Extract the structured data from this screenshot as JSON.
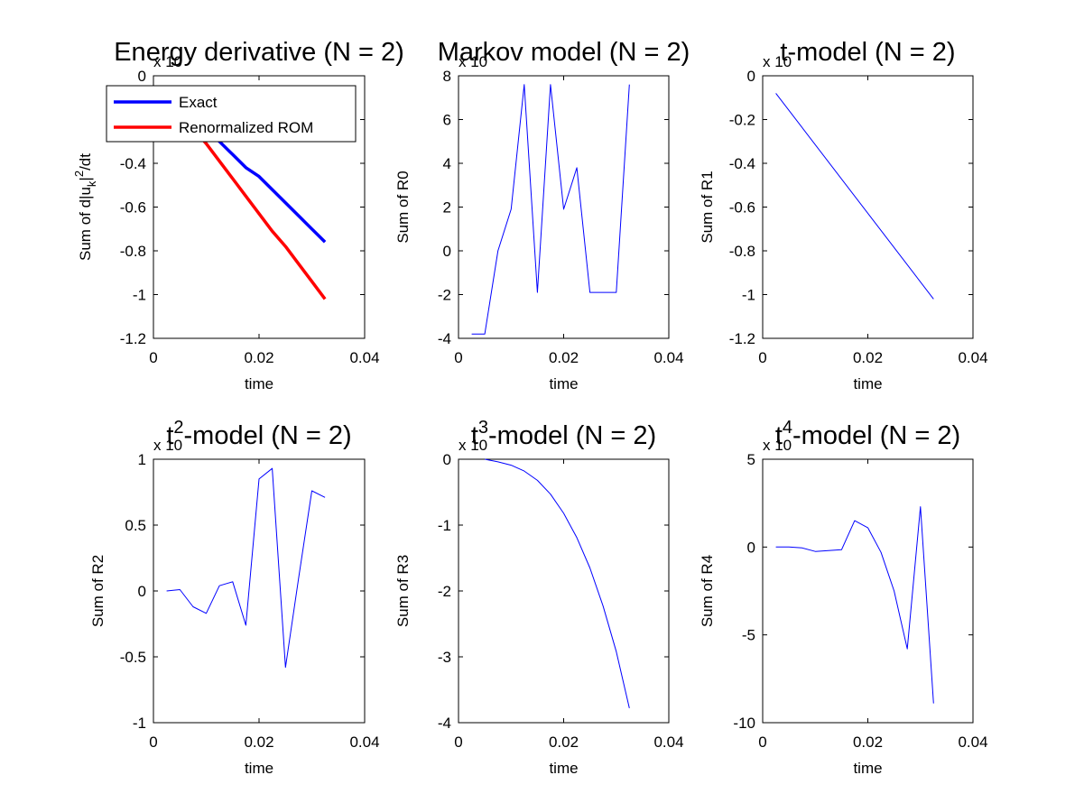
{
  "chart_data": [
    {
      "type": "line",
      "title_parts": [
        "Energy derivative (N = 2)"
      ],
      "xlabel": "time",
      "ylabel_parts": [
        "Sum of d|u",
        "k",
        "|",
        "2",
        "/dt"
      ],
      "xlim": [
        0,
        0.04
      ],
      "ylim": [
        -1.2,
        0
      ],
      "xticks": [
        "0",
        "0.02",
        "0.04"
      ],
      "yticks": [
        "-1.2",
        "-1",
        "-0.8",
        "-0.6",
        "-0.4",
        "-0.2",
        "0"
      ],
      "multiplier": "x 10",
      "legend": {
        "placement": "top-left",
        "entries": [
          "Exact",
          "Renormalized ROM"
        ]
      },
      "grid": false,
      "series": [
        {
          "name": "Exact",
          "color": "#0000ff",
          "x": [
            0.0025,
            0.005,
            0.0075,
            0.01,
            0.0125,
            0.015,
            0.0175,
            0.02,
            0.0225,
            0.025,
            0.0275,
            0.03,
            0.0325
          ],
          "y": [
            -0.06,
            -0.12,
            -0.18,
            -0.24,
            -0.3,
            -0.36,
            -0.42,
            -0.46,
            -0.52,
            -0.58,
            -0.64,
            -0.7,
            -0.76
          ]
        },
        {
          "name": "Renormalized ROM",
          "color": "#ff0000",
          "x": [
            0.0025,
            0.005,
            0.0075,
            0.01,
            0.0125,
            0.015,
            0.0175,
            0.02,
            0.0225,
            0.025,
            0.0275,
            0.03,
            0.0325
          ],
          "y": [
            -0.08,
            -0.16,
            -0.24,
            -0.31,
            -0.39,
            -0.47,
            -0.55,
            -0.63,
            -0.71,
            -0.78,
            -0.86,
            -0.94,
            -1.02
          ]
        }
      ]
    },
    {
      "type": "line",
      "title_parts": [
        "Markov model (N = 2)"
      ],
      "xlabel": "time",
      "ylabel_parts": [
        "Sum of R0"
      ],
      "xlim": [
        0,
        0.04
      ],
      "ylim": [
        -4,
        8
      ],
      "xticks": [
        "0",
        "0.02",
        "0.04"
      ],
      "yticks": [
        "-4",
        "-2",
        "0",
        "2",
        "4",
        "6",
        "8"
      ],
      "multiplier": "x 10",
      "grid": false,
      "series": [
        {
          "color": "#0000ff",
          "x": [
            0.0025,
            0.005,
            0.0075,
            0.01,
            0.0125,
            0.015,
            0.0175,
            0.02,
            0.0225,
            0.025,
            0.0275,
            0.03,
            0.0325
          ],
          "y": [
            -3.8,
            -3.8,
            0.0,
            1.9,
            7.6,
            -1.9,
            7.6,
            1.9,
            3.8,
            -1.9,
            -1.9,
            -1.9,
            7.6
          ]
        }
      ]
    },
    {
      "type": "line",
      "title_parts": [
        "t-model (N = 2)"
      ],
      "xlabel": "time",
      "ylabel_parts": [
        "Sum of R1"
      ],
      "xlim": [
        0,
        0.04
      ],
      "ylim": [
        -1.2,
        0
      ],
      "xticks": [
        "0",
        "0.02",
        "0.04"
      ],
      "yticks": [
        "-1.2",
        "-1",
        "-0.8",
        "-0.6",
        "-0.4",
        "-0.2",
        "0"
      ],
      "multiplier": "x 10",
      "grid": false,
      "series": [
        {
          "color": "#0000ff",
          "x": [
            0.0025,
            0.0325
          ],
          "y": [
            -0.08,
            -1.02
          ]
        }
      ]
    },
    {
      "type": "line",
      "title_parts": [
        "t",
        "2",
        "-model (N = 2)"
      ],
      "xlabel": "time",
      "ylabel_parts": [
        "Sum of R2"
      ],
      "xlim": [
        0,
        0.04
      ],
      "ylim": [
        -1,
        1
      ],
      "xticks": [
        "0",
        "0.02",
        "0.04"
      ],
      "yticks": [
        "-1",
        "-0.5",
        "0",
        "0.5",
        "1"
      ],
      "multiplier": "x 10",
      "grid": false,
      "series": [
        {
          "color": "#0000ff",
          "x": [
            0.0025,
            0.005,
            0.0075,
            0.01,
            0.0125,
            0.015,
            0.0175,
            0.02,
            0.0225,
            0.025,
            0.0275,
            0.03,
            0.0325
          ],
          "y": [
            0.0,
            0.01,
            -0.12,
            -0.17,
            0.04,
            0.07,
            -0.26,
            0.85,
            0.93,
            -0.58,
            0.1,
            0.76,
            0.71
          ]
        }
      ]
    },
    {
      "type": "line",
      "title_parts": [
        "t",
        "3",
        "-model (N = 2)"
      ],
      "xlabel": "time",
      "ylabel_parts": [
        "Sum of R3"
      ],
      "xlim": [
        0,
        0.04
      ],
      "ylim": [
        -4,
        0
      ],
      "xticks": [
        "0",
        "0.02",
        "0.04"
      ],
      "yticks": [
        "-4",
        "-3",
        "-2",
        "-1",
        "0"
      ],
      "multiplier": "x 10",
      "grid": false,
      "series": [
        {
          "color": "#0000ff",
          "x": [
            0.005,
            0.0075,
            0.01,
            0.0125,
            0.015,
            0.0175,
            0.02,
            0.0225,
            0.025,
            0.0275,
            0.03,
            0.0325
          ],
          "y": [
            0.0,
            -0.04,
            -0.09,
            -0.18,
            -0.32,
            -0.53,
            -0.82,
            -1.19,
            -1.65,
            -2.23,
            -2.92,
            -3.78
          ]
        }
      ]
    },
    {
      "type": "line",
      "title_parts": [
        "t",
        "4",
        "-model (N = 2)"
      ],
      "xlabel": "time",
      "ylabel_parts": [
        "Sum of R4"
      ],
      "xlim": [
        0,
        0.04
      ],
      "ylim": [
        -10,
        5
      ],
      "xticks": [
        "0",
        "0.02",
        "0.04"
      ],
      "yticks": [
        "-10",
        "-5",
        "0",
        "5"
      ],
      "multiplier": "x 10",
      "grid": false,
      "series": [
        {
          "color": "#0000ff",
          "x": [
            0.0025,
            0.005,
            0.0075,
            0.01,
            0.0125,
            0.015,
            0.0175,
            0.02,
            0.0225,
            0.025,
            0.0275,
            0.03,
            0.0325
          ],
          "y": [
            0.0,
            0.0,
            -0.05,
            -0.25,
            -0.2,
            -0.15,
            1.5,
            1.1,
            -0.3,
            -2.5,
            -5.8,
            2.3,
            -8.9
          ]
        }
      ]
    }
  ]
}
